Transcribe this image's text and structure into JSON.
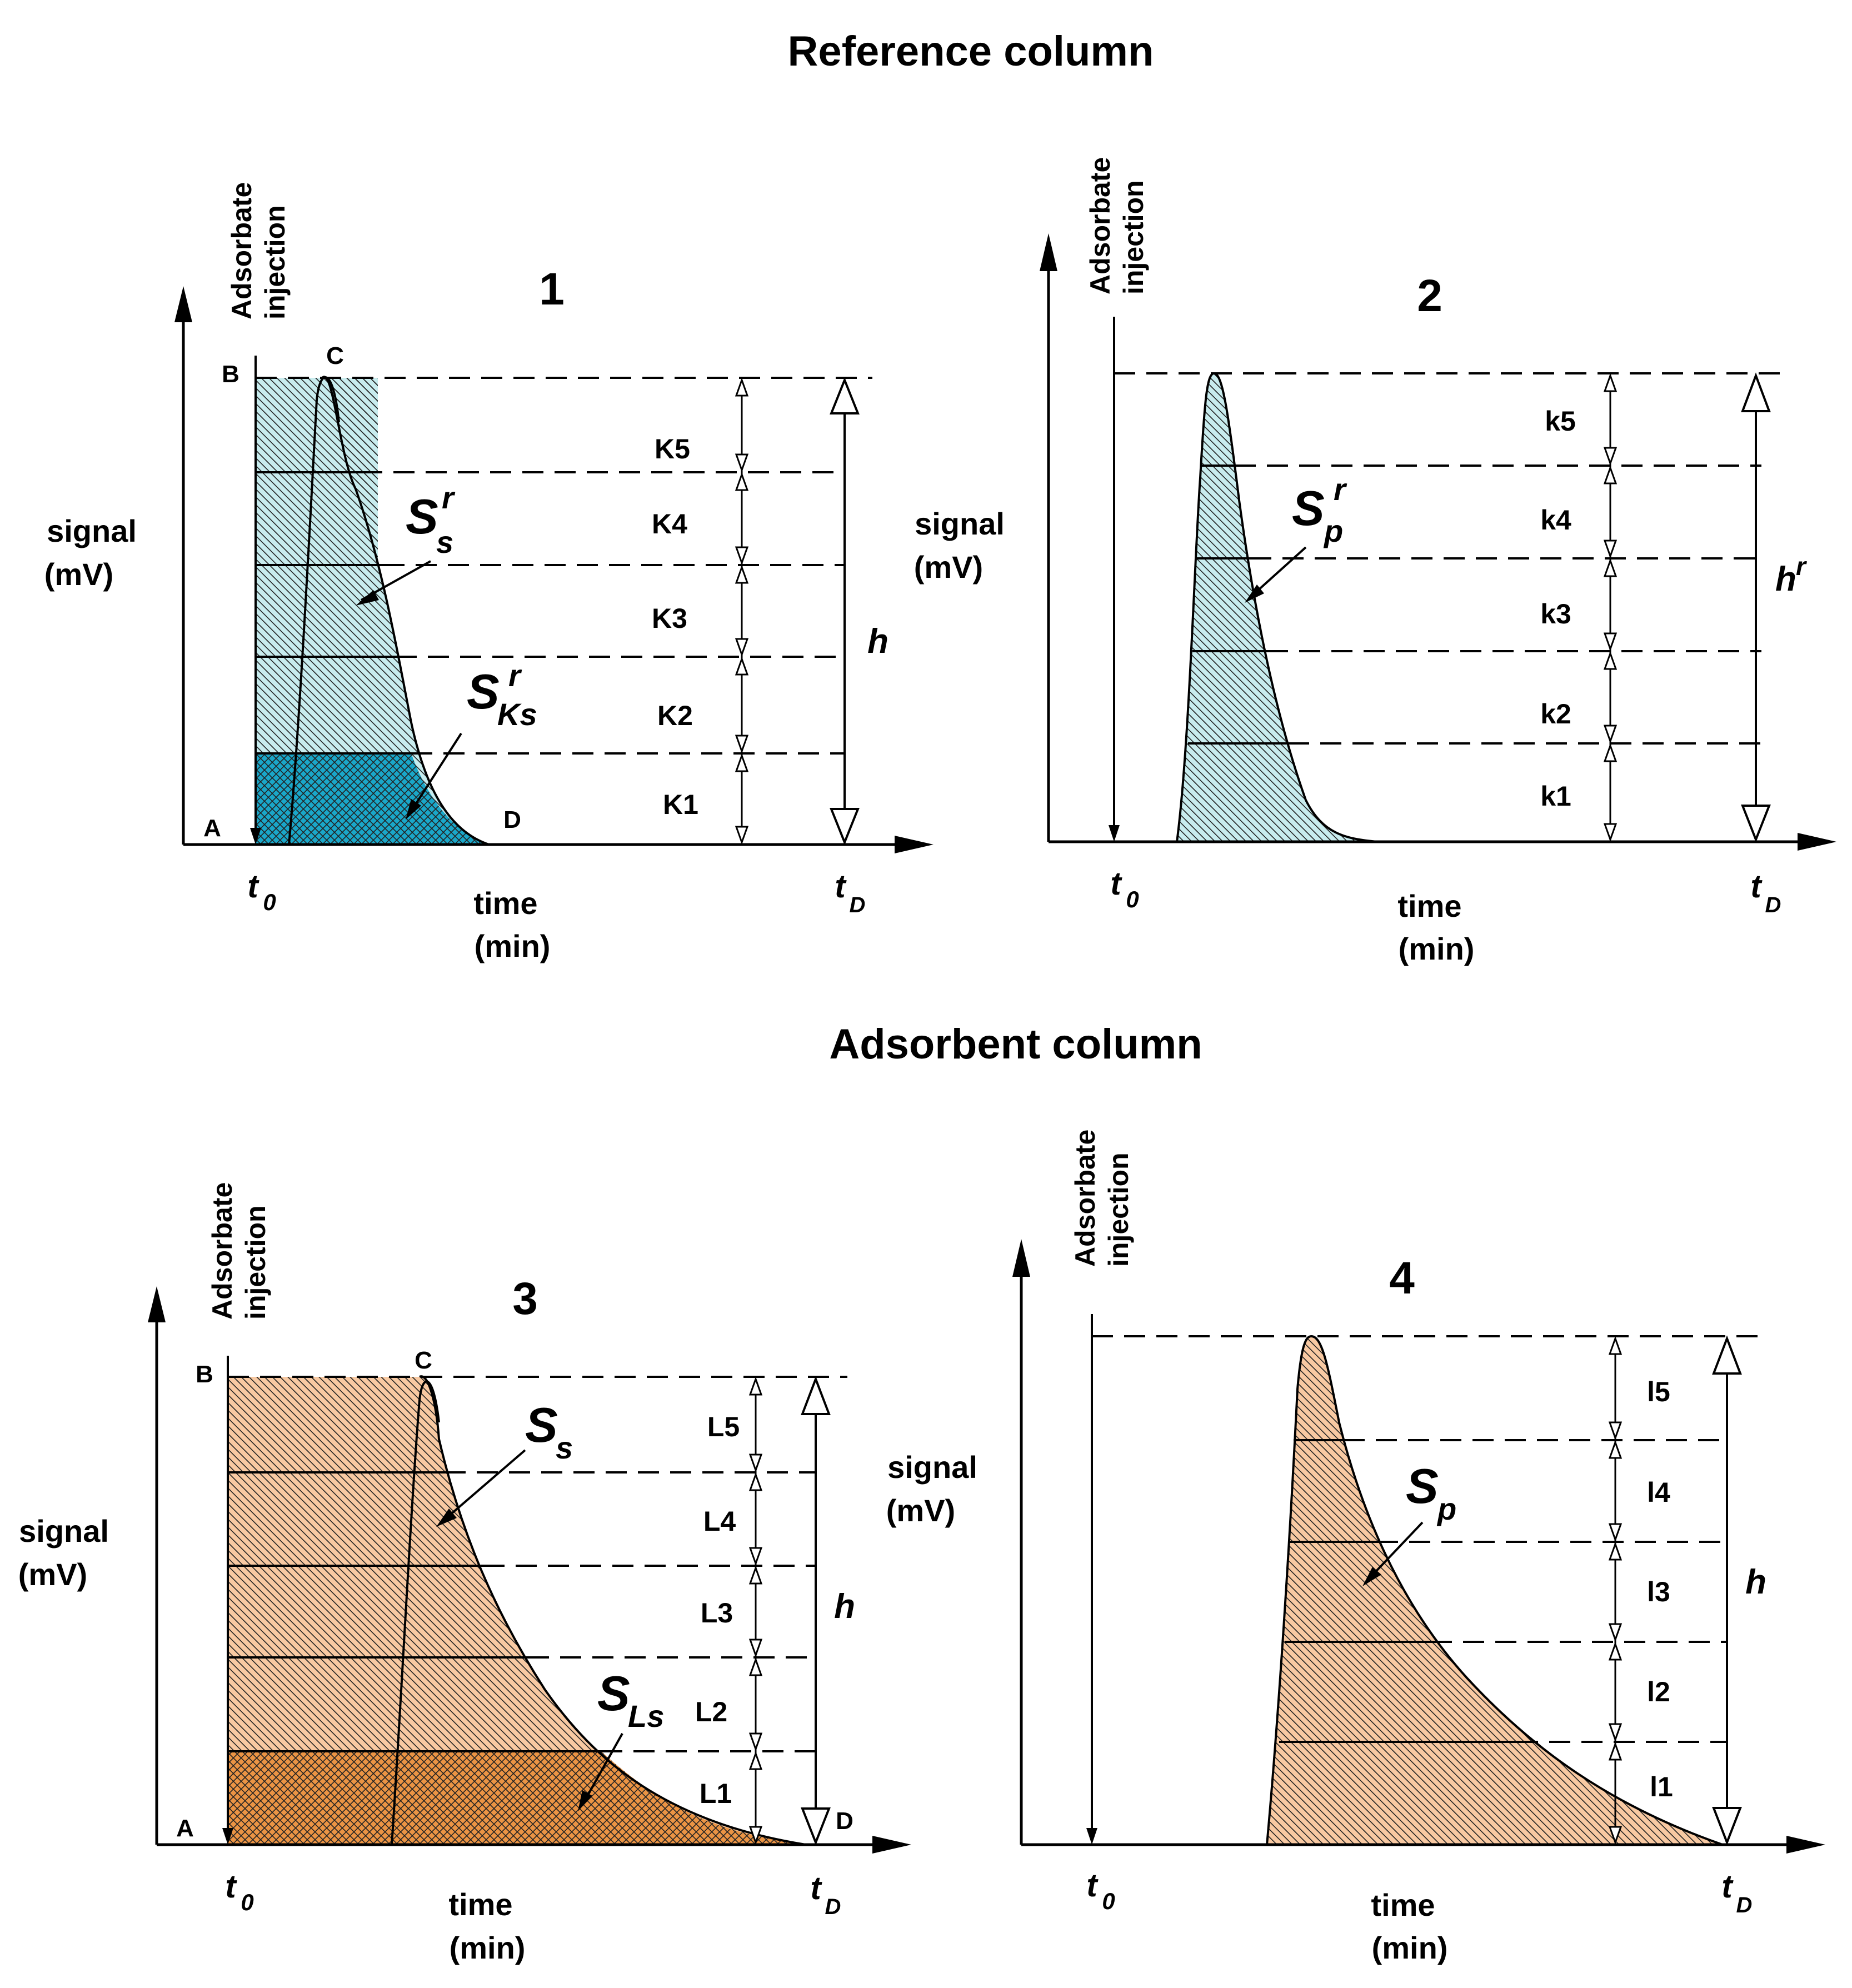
{
  "titles": {
    "reference": "Reference column",
    "adsorbent": "Adsorbent column"
  },
  "common": {
    "injection_line1": "Adsorbate",
    "injection_line2": "injection",
    "signal_line1": "signal",
    "signal_line2": "(mV)",
    "time_line1": "time",
    "time_line2": "(min)",
    "t0_main": "t",
    "t0_sub": "0",
    "tD_main": "t",
    "tD_sub": "D"
  },
  "panel1": {
    "number": "1",
    "point_a": "A",
    "point_b": "B",
    "point_c": "C",
    "point_d": "D",
    "bands": [
      "K5",
      "K4",
      "K3",
      "K2",
      "K1"
    ],
    "h_label": "h",
    "area_main": "S",
    "area_sub": "s",
    "area_sup": "r",
    "part_main": "S",
    "part_sub": "Ks",
    "part_sup": "r"
  },
  "panel2": {
    "number": "2",
    "bands": [
      "k5",
      "k4",
      "k3",
      "k2",
      "k1"
    ],
    "h_main": "h",
    "h_sup": "r",
    "area_main": "S",
    "area_sub": "p",
    "area_sup": "r"
  },
  "panel3": {
    "number": "3",
    "point_a": "A",
    "point_b": "B",
    "point_c": "C",
    "point_d": "D",
    "bands": [
      "L5",
      "L4",
      "L3",
      "L2",
      "L1"
    ],
    "h_label": "h",
    "area_main": "S",
    "area_sub": "s",
    "part_main": "S",
    "part_sub": "Ls"
  },
  "panel4": {
    "number": "4",
    "bands": [
      "l5",
      "l4",
      "l3",
      "l2",
      "l1"
    ],
    "h_label": "h",
    "area_main": "S",
    "area_sub": "p"
  },
  "colors": {
    "cyan_light": "#c8ecee",
    "cyan_dark": "#1aa7c9",
    "orange_light": "#f8c9a2",
    "orange_dark": "#eb9444"
  }
}
